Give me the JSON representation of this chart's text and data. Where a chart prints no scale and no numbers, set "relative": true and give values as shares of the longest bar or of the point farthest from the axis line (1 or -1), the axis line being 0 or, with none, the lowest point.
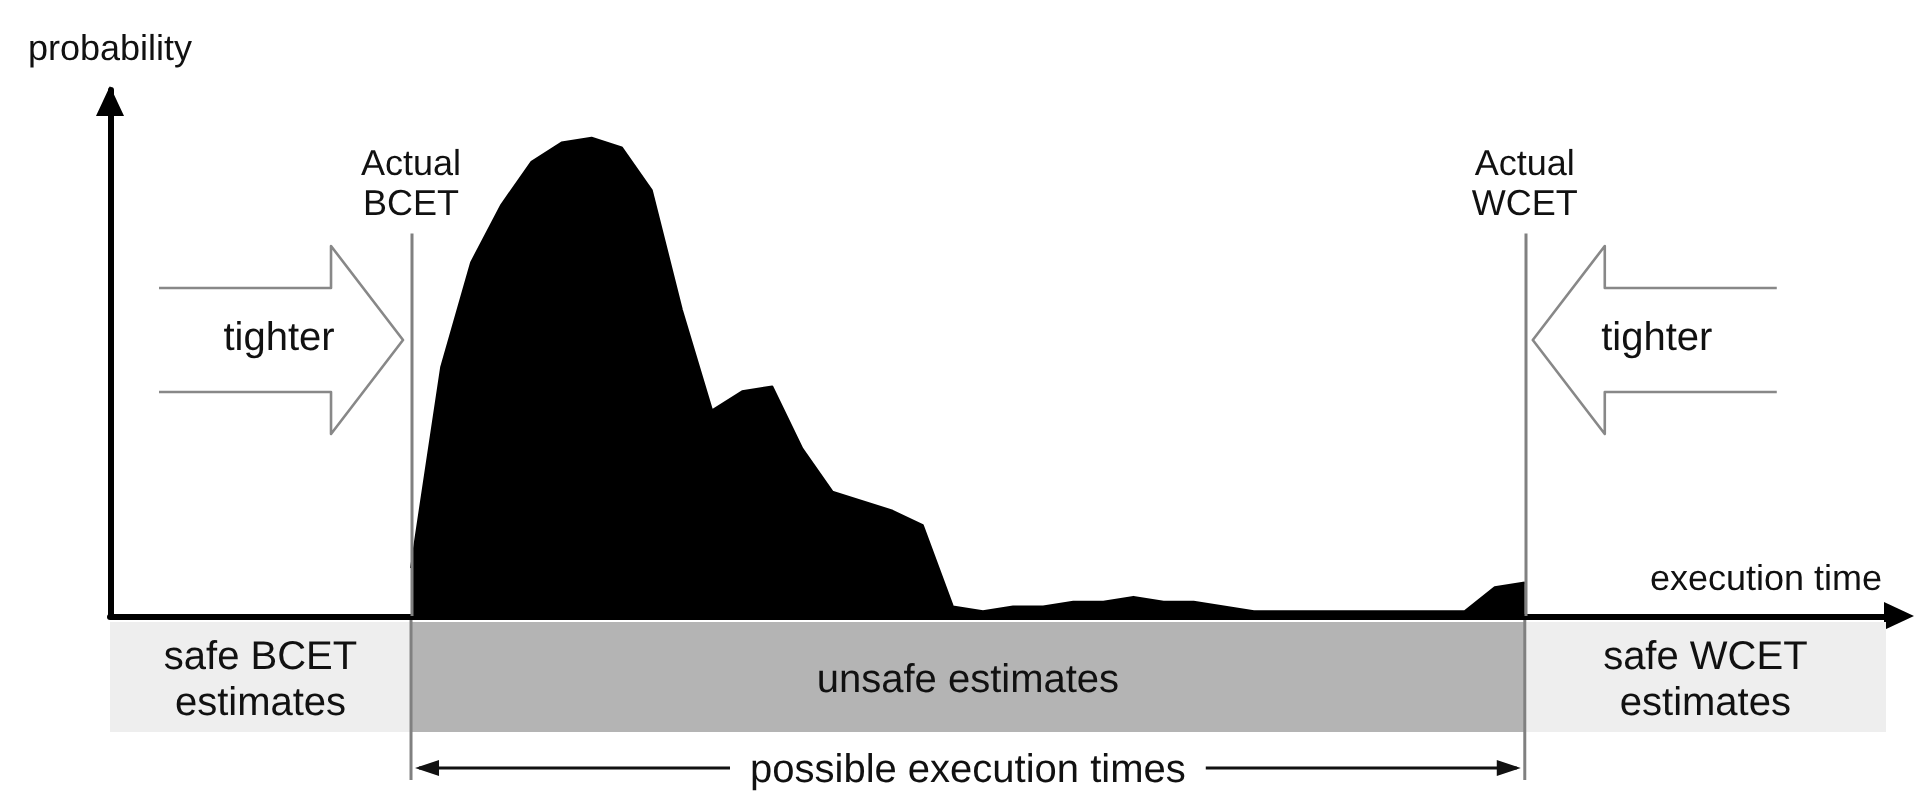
{
  "chart_data": {
    "type": "area",
    "relative": true,
    "xlabel": "execution time",
    "ylabel": "probability",
    "categories": [
      null,
      null,
      null,
      null,
      null,
      null,
      null,
      null,
      null,
      null,
      null,
      null,
      null,
      null,
      null,
      null,
      null,
      null,
      null,
      null,
      null,
      null,
      null,
      null,
      null,
      null,
      null,
      null,
      null,
      null,
      null,
      null,
      null,
      null,
      null,
      null,
      null,
      null,
      null,
      null,
      null,
      null,
      null,
      null,
      null,
      null,
      null,
      null,
      null,
      null,
      null,
      null,
      null,
      null,
      null,
      null,
      null,
      null,
      null,
      null
    ],
    "series": [
      {
        "color": "#000000",
        "values": [
          null,
          null,
          null,
          null,
          null,
          null,
          null,
          null,
          null,
          null,
          0.1,
          0.52,
          0.74,
          0.86,
          0.95,
          0.99,
          1,
          0.98,
          0.89,
          0.64,
          0.43,
          0.47,
          0.48,
          0.35,
          0.26,
          0.24,
          0.22,
          0.19,
          0.02,
          0.01,
          0.02,
          0.02,
          0.03,
          0.03,
          0.04,
          0.03,
          0.03,
          0.02,
          0.01,
          0.01,
          0.01,
          0.01,
          0.01,
          0.01,
          0.01,
          0.01,
          0.06,
          0.07,
          null,
          null,
          null,
          null,
          null,
          null,
          null,
          null,
          null,
          null,
          null,
          null
        ]
      }
    ],
    "annotations": [
      "Actual\nBCET",
      "Actual\nWCET",
      "tighter",
      "tighter",
      "safe BCET\nestimates",
      "unsafe estimates",
      "safe WCET\nestimates",
      "possible execution times"
    ]
  }
}
